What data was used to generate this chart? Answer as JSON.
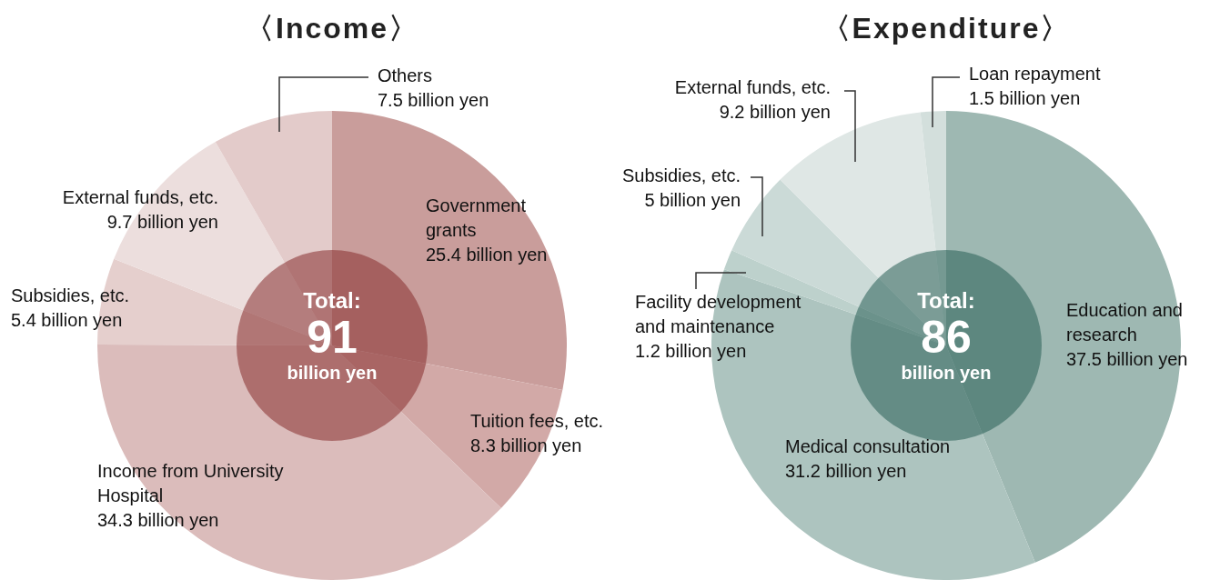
{
  "chart_data": [
    {
      "type": "donut",
      "title": "〈Income〉",
      "categories": [
        "Government grants",
        "Tuition fees, etc.",
        "Income from University Hospital",
        "Subsidies, etc.",
        "External funds, etc.",
        "Others"
      ],
      "values": [
        25.4,
        8.3,
        34.3,
        5.4,
        9.7,
        7.5
      ],
      "colors": [
        "#c99d9b",
        "#d2a9a7",
        "#dbbcbb",
        "#e5cfcd",
        "#ecdedd",
        "#e3cbca"
      ],
      "value_labels": [
        "25.4 billion yen",
        "8.3 billion yen",
        "34.3 billion yen",
        "5.4 billion yen",
        "9.7 billion yen",
        "7.5 billion yen"
      ],
      "annotations": [
        "Total:",
        "91",
        "billion yen"
      ]
    },
    {
      "type": "donut",
      "title": "〈Expenditure〉",
      "categories": [
        "Education and research",
        "Medical consultation",
        "Facility development and maintenance",
        "Subsidies, etc.",
        "External funds, etc.",
        "Loan repayment"
      ],
      "values": [
        37.5,
        31.2,
        1.2,
        5,
        9.2,
        1.5
      ],
      "colors": [
        "#9eb8b2",
        "#adc4bf",
        "#bdd1cc",
        "#cbdad7",
        "#dfe7e5",
        "#d3dfdc"
      ],
      "value_labels": [
        "37.5 billion yen",
        "31.2 billion yen",
        "1.2 billion yen",
        "5 billion yen",
        "9.2 billion yen",
        "1.5 billion yen"
      ],
      "annotations": [
        "Total:",
        "86",
        "billion yen"
      ]
    }
  ]
}
